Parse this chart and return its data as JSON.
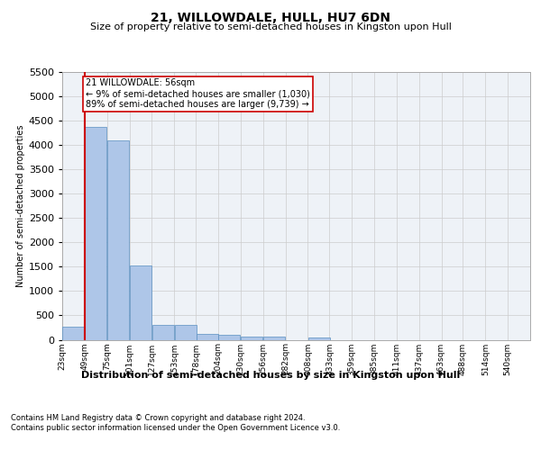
{
  "title": "21, WILLOWDALE, HULL, HU7 6DN",
  "subtitle": "Size of property relative to semi-detached houses in Kingston upon Hull",
  "xlabel": "Distribution of semi-detached houses by size in Kingston upon Hull",
  "ylabel": "Number of semi-detached properties",
  "footnote1": "Contains HM Land Registry data © Crown copyright and database right 2024.",
  "footnote2": "Contains public sector information licensed under the Open Government Licence v3.0.",
  "property_label": "21 WILLOWDALE: 56sqm",
  "annotation_smaller": "← 9% of semi-detached houses are smaller (1,030)",
  "annotation_larger": "89% of semi-detached houses are larger (9,739) →",
  "property_size": 56,
  "bins": [
    23,
    49,
    75,
    101,
    127,
    153,
    178,
    204,
    230,
    256,
    282,
    308,
    333,
    359,
    385,
    411,
    437,
    463,
    488,
    514,
    540
  ],
  "bin_labels": [
    "23sqm",
    "49sqm",
    "75sqm",
    "101sqm",
    "127sqm",
    "153sqm",
    "178sqm",
    "204sqm",
    "230sqm",
    "256sqm",
    "282sqm",
    "308sqm",
    "333sqm",
    "359sqm",
    "385sqm",
    "411sqm",
    "437sqm",
    "463sqm",
    "488sqm",
    "514sqm",
    "540sqm"
  ],
  "values": [
    270,
    4380,
    4100,
    1530,
    310,
    310,
    120,
    100,
    70,
    60,
    0,
    50,
    0,
    0,
    0,
    0,
    0,
    0,
    0,
    0
  ],
  "bar_color": "#aec6e8",
  "bar_edge_color": "#5a8fc0",
  "vline_color": "#cc0000",
  "vline_x": 49,
  "annotation_box_color": "#cc0000",
  "grid_color": "#cccccc",
  "ylim": [
    0,
    5500
  ],
  "yticks": [
    0,
    500,
    1000,
    1500,
    2000,
    2500,
    3000,
    3500,
    4000,
    4500,
    5000,
    5500
  ],
  "bg_color": "#eef2f7",
  "title_fontsize": 10,
  "subtitle_fontsize": 8,
  "ylabel_fontsize": 7,
  "ytick_fontsize": 8,
  "xtick_fontsize": 6.5,
  "annot_fontsize": 7,
  "footnote_fontsize": 6
}
